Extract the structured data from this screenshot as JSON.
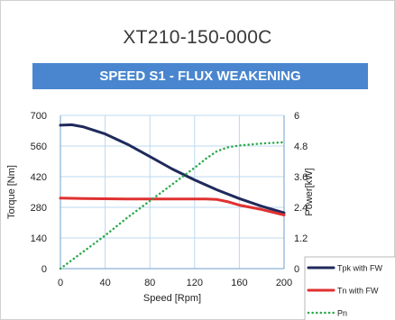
{
  "header": {
    "title": "XT210-150-000C",
    "banner": "SPEED S1 - FLUX WEAKENING"
  },
  "chart_data": {
    "type": "line",
    "xlabel": "Speed [Rpm]",
    "ylabel_left": "Torque [Nm]",
    "ylabel_right": "Power[kW]",
    "xlim": [
      0,
      200
    ],
    "ylim_left": [
      0,
      700
    ],
    "ylim_right": [
      0,
      6
    ],
    "x_ticks": [
      "0",
      "40",
      "80",
      "120",
      "160",
      "200"
    ],
    "y_left_ticks": [
      "0",
      "140",
      "280",
      "420",
      "560",
      "700"
    ],
    "y_right_ticks": [
      "0",
      "1.2",
      "2.4",
      "3.6",
      "4.8",
      "6"
    ],
    "grid": true,
    "legend_position": "bottom-right",
    "series": [
      {
        "name": "Tpk with FW",
        "axis": "left",
        "color": "#1f2a5c",
        "style": "solid",
        "x": [
          0,
          10,
          20,
          40,
          60,
          80,
          100,
          120,
          140,
          160,
          180,
          200
        ],
        "y": [
          655,
          657,
          648,
          615,
          568,
          512,
          455,
          405,
          360,
          320,
          285,
          255
        ]
      },
      {
        "name": "Tn with FW",
        "axis": "left",
        "color": "#e03030",
        "style": "solid",
        "x": [
          0,
          20,
          60,
          100,
          130,
          140,
          150,
          160,
          180,
          200
        ],
        "y": [
          322,
          320,
          318,
          318,
          318,
          316,
          305,
          290,
          270,
          245
        ]
      },
      {
        "name": "Pn",
        "axis": "right",
        "color": "#2aa84a",
        "style": "dotted",
        "x": [
          0,
          20,
          40,
          60,
          80,
          100,
          120,
          130,
          140,
          150,
          160,
          180,
          200
        ],
        "y": [
          0,
          0.65,
          1.3,
          2.0,
          2.65,
          3.3,
          3.95,
          4.3,
          4.6,
          4.75,
          4.82,
          4.9,
          4.95
        ]
      }
    ]
  }
}
